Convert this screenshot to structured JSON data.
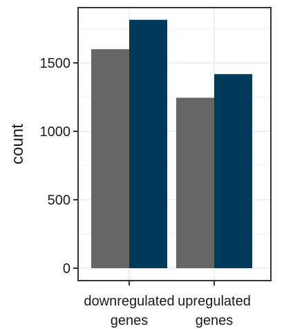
{
  "chart_data": {
    "type": "bar",
    "categories": [
      [
        "downregulated",
        "genes"
      ],
      [
        "upregulated",
        "genes"
      ]
    ],
    "series": [
      {
        "values": [
          1600,
          1245
        ],
        "color": "#666666"
      },
      {
        "values": [
          1815,
          1418
        ],
        "color": "#003a5b"
      }
    ],
    "ylabel": "count",
    "xlabel": "",
    "ylim": [
      0,
      1900
    ],
    "yticks": [
      0,
      500,
      1000,
      1500
    ],
    "grid": true,
    "legend": "none"
  }
}
